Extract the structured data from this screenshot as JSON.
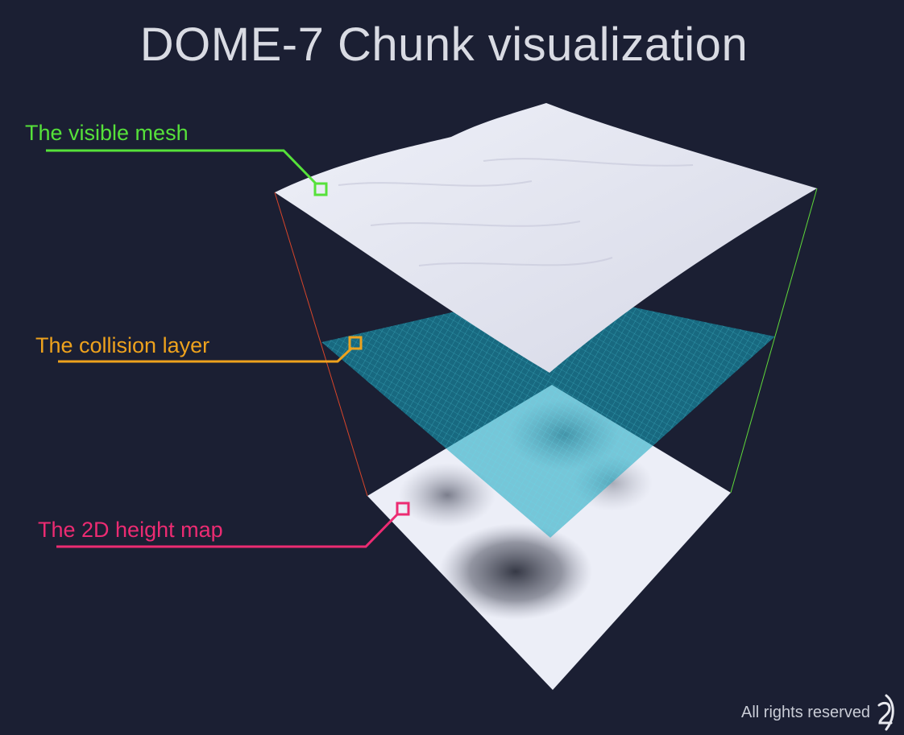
{
  "title": "DOME-7 Chunk visualization",
  "callouts": [
    {
      "label": "The visible mesh",
      "color": "#56e13a"
    },
    {
      "label": "The collision layer",
      "color": "#eea21d"
    },
    {
      "label": "The 2D height map",
      "color": "#ec2b72"
    }
  ],
  "layers": {
    "mesh_color": "#e9eaf4",
    "collision_color": "#16a5bf",
    "heightmap_light": "#eceef7",
    "heightmap_dark": "#3a3d4a"
  },
  "edges": {
    "left_color": "#d8452a",
    "right_color": "#5fd83a"
  },
  "footer": {
    "text": "All rights reserved",
    "logo_icon": "signature-logo-icon"
  }
}
